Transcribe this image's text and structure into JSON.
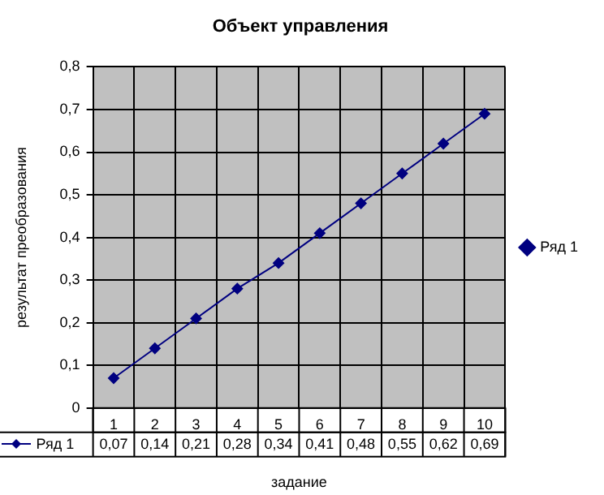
{
  "chart_data": {
    "type": "line",
    "title": "Объект управления",
    "xlabel": "задание",
    "ylabel": "результат преобразования",
    "categories": [
      "1",
      "2",
      "3",
      "4",
      "5",
      "6",
      "7",
      "8",
      "9",
      "10"
    ],
    "series": [
      {
        "name": "Ряд 1",
        "color": "#000080",
        "values": [
          0.07,
          0.14,
          0.21,
          0.28,
          0.34,
          0.41,
          0.48,
          0.55,
          0.62,
          0.69
        ]
      }
    ],
    "value_labels": [
      "0,07",
      "0,14",
      "0,21",
      "0,28",
      "0,34",
      "0,41",
      "0,48",
      "0,55",
      "0,62",
      "0,69"
    ],
    "ylim": [
      0,
      0.8
    ],
    "yticks": [
      {
        "value": 0,
        "label": "0"
      },
      {
        "value": 0.1,
        "label": "0,1"
      },
      {
        "value": 0.2,
        "label": "0,2"
      },
      {
        "value": 0.3,
        "label": "0,3"
      },
      {
        "value": 0.4,
        "label": "0,4"
      },
      {
        "value": 0.5,
        "label": "0,5"
      },
      {
        "value": 0.6,
        "label": "0,6"
      },
      {
        "value": 0.7,
        "label": "0,7"
      },
      {
        "value": 0.8,
        "label": "0,8"
      }
    ],
    "grid": true,
    "legend": "right",
    "marker": "diamond",
    "line_style": "solid"
  }
}
